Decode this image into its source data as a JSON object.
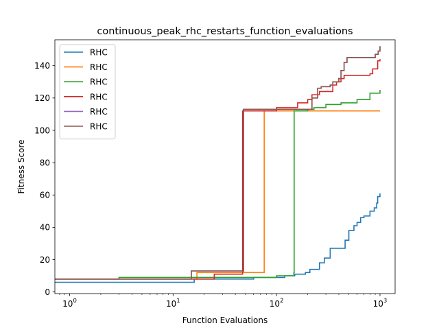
{
  "chart_data": {
    "type": "line",
    "title": "continuous_peak_rhc_restarts_function_evaluations",
    "xlabel": "Function Evaluations",
    "ylabel": "Fitness Score",
    "xscale": "log",
    "xlim": [
      0.72,
      1400
    ],
    "ylim": [
      -1,
      156
    ],
    "x_major_ticks": [
      1,
      10,
      100,
      1000
    ],
    "x_tick_labels": [
      {
        "base": "10",
        "exp": "0"
      },
      {
        "base": "10",
        "exp": "1"
      },
      {
        "base": "10",
        "exp": "2"
      },
      {
        "base": "10",
        "exp": "3"
      }
    ],
    "y_ticks": [
      0,
      20,
      40,
      60,
      80,
      100,
      120,
      140
    ],
    "y_tick_labels": [
      "0",
      "20",
      "40",
      "60",
      "80",
      "100",
      "120",
      "140"
    ],
    "grid": false,
    "legend": {
      "position": "upper-left",
      "labels": [
        "RHC",
        "RHC",
        "RHC",
        "RHC",
        "RHC",
        "RHC"
      ]
    },
    "series": [
      {
        "name": "RHC",
        "color": "#1f77b4",
        "x": [
          0.7,
          15,
          16,
          60,
          60,
          100,
          120,
          150,
          190,
          210,
          260,
          290,
          330,
          430,
          460,
          500,
          560,
          600,
          650,
          700,
          800,
          880,
          930,
          950,
          1000
        ],
        "y": [
          6,
          6,
          8,
          8,
          9,
          9,
          10,
          11,
          12,
          14,
          18,
          21,
          27,
          27,
          32,
          38,
          41,
          43,
          46,
          47,
          50,
          52,
          55,
          59,
          61
        ]
      },
      {
        "name": "RHC",
        "color": "#ff7f0e",
        "x": [
          0.7,
          15,
          17,
          50,
          75,
          76,
          1000
        ],
        "y": [
          8,
          8,
          12,
          12,
          12,
          112,
          112
        ]
      },
      {
        "name": "RHC",
        "color": "#2ca02c",
        "x": [
          0.7,
          2,
          3,
          40,
          100,
          140,
          147,
          148,
          200,
          230,
          300,
          420,
          600,
          800,
          1000
        ],
        "y": [
          8,
          8,
          9,
          9,
          10,
          10,
          12,
          112,
          113,
          114,
          116,
          117,
          119,
          123,
          125
        ]
      },
      {
        "name": "RHC",
        "color": "#d62728",
        "x": [
          0.7,
          15,
          25,
          46,
          47,
          100,
          160,
          200,
          220,
          260,
          350,
          380,
          420,
          450,
          600,
          800,
          850,
          950,
          1000
        ],
        "y": [
          8,
          8,
          11,
          11,
          112,
          114,
          117,
          119,
          122,
          124,
          128,
          130,
          132,
          134,
          134,
          135,
          138,
          143,
          144
        ]
      },
      {
        "name": "RHC",
        "color": "#9467bd",
        "x": [
          0.7,
          14,
          15,
          47,
          48,
          210,
          220,
          250,
          270,
          330,
          350,
          400,
          420,
          450,
          480,
          800,
          900,
          960,
          1000
        ],
        "y": [
          8,
          8,
          13,
          13,
          113,
          113,
          120,
          126,
          127,
          128,
          130,
          132,
          137,
          142,
          145,
          145,
          147,
          149,
          152
        ]
      },
      {
        "name": "RHC",
        "color": "#8c564b",
        "x": [
          0.7,
          14,
          15,
          47,
          48,
          210,
          220,
          250,
          270,
          330,
          350,
          400,
          420,
          450,
          480,
          800,
          900,
          960,
          1000
        ],
        "y": [
          8,
          8,
          13,
          13,
          113,
          113,
          120,
          126,
          127,
          128,
          130,
          132,
          137,
          142,
          145,
          145,
          147,
          149,
          152
        ]
      }
    ]
  }
}
